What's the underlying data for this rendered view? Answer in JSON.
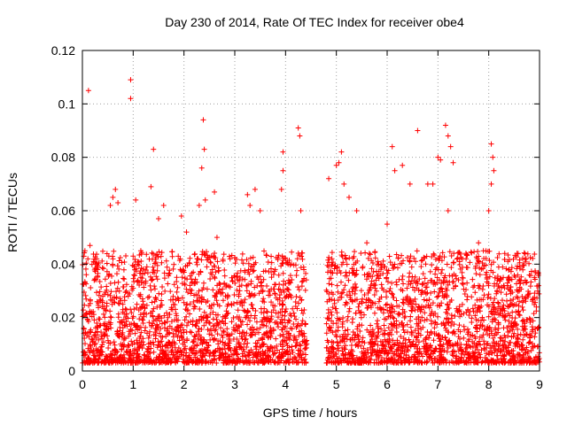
{
  "chart_data": {
    "type": "scatter",
    "title": "Day 230 of 2014, Rate Of TEC Index for receiver obe4",
    "xlabel": "GPS time / hours",
    "ylabel": "ROTI / TECUs",
    "xlim": [
      0,
      9
    ],
    "ylim": [
      0,
      0.12
    ],
    "x_ticks": [
      0,
      1,
      2,
      3,
      4,
      5,
      6,
      7,
      8,
      9
    ],
    "x_tick_labels": [
      "0",
      "1",
      "2",
      "3",
      "4",
      "5",
      "6",
      "7",
      "8",
      "9"
    ],
    "y_ticks": [
      0,
      0.02,
      0.04,
      0.06,
      0.08,
      0.1,
      0.12
    ],
    "y_tick_labels": [
      "0",
      "0.02",
      "0.04",
      "0.06",
      "0.08",
      "0.1",
      "0.12"
    ],
    "grid": true,
    "marker": "+",
    "color": "#ff0000",
    "data_gap_hours": [
      4.42,
      4.8
    ],
    "series": [
      {
        "name": "ROTI",
        "points": [
          [
            0.05,
            0.045
          ],
          [
            0.12,
            0.105
          ],
          [
            0.15,
            0.047
          ],
          [
            0.22,
            0.041
          ],
          [
            0.3,
            0.038
          ],
          [
            0.55,
            0.062
          ],
          [
            0.6,
            0.065
          ],
          [
            0.65,
            0.068
          ],
          [
            0.7,
            0.063
          ],
          [
            0.95,
            0.109
          ],
          [
            0.95,
            0.102
          ],
          [
            1.05,
            0.064
          ],
          [
            1.15,
            0.045
          ],
          [
            1.35,
            0.069
          ],
          [
            1.4,
            0.083
          ],
          [
            1.5,
            0.057
          ],
          [
            1.6,
            0.062
          ],
          [
            1.95,
            0.058
          ],
          [
            2.05,
            0.052
          ],
          [
            2.3,
            0.062
          ],
          [
            2.35,
            0.076
          ],
          [
            2.38,
            0.094
          ],
          [
            2.4,
            0.083
          ],
          [
            2.42,
            0.064
          ],
          [
            2.6,
            0.067
          ],
          [
            2.65,
            0.05
          ],
          [
            3.25,
            0.066
          ],
          [
            3.3,
            0.062
          ],
          [
            3.4,
            0.068
          ],
          [
            3.5,
            0.06
          ],
          [
            3.95,
            0.082
          ],
          [
            3.95,
            0.075
          ],
          [
            3.92,
            0.068
          ],
          [
            4.25,
            0.091
          ],
          [
            4.28,
            0.088
          ],
          [
            4.3,
            0.06
          ],
          [
            4.85,
            0.072
          ],
          [
            5.0,
            0.077
          ],
          [
            5.05,
            0.078
          ],
          [
            5.1,
            0.082
          ],
          [
            5.15,
            0.07
          ],
          [
            5.25,
            0.065
          ],
          [
            5.4,
            0.06
          ],
          [
            5.6,
            0.048
          ],
          [
            6.0,
            0.055
          ],
          [
            6.1,
            0.084
          ],
          [
            6.15,
            0.075
          ],
          [
            6.3,
            0.077
          ],
          [
            6.45,
            0.07
          ],
          [
            6.6,
            0.09
          ],
          [
            6.8,
            0.07
          ],
          [
            6.9,
            0.07
          ],
          [
            7.0,
            0.08
          ],
          [
            7.05,
            0.079
          ],
          [
            7.15,
            0.092
          ],
          [
            7.2,
            0.088
          ],
          [
            7.25,
            0.084
          ],
          [
            7.3,
            0.078
          ],
          [
            7.2,
            0.06
          ],
          [
            7.8,
            0.048
          ],
          [
            8.05,
            0.085
          ],
          [
            8.08,
            0.08
          ],
          [
            8.1,
            0.075
          ],
          [
            8.05,
            0.07
          ],
          [
            8.0,
            0.06
          ],
          [
            8.4,
            0.038
          ],
          [
            8.6,
            0.03
          ],
          [
            8.9,
            0.035
          ]
        ]
      }
    ],
    "noise_model": {
      "description": "dense background band of ROTI values between ~0.003 and ~0.045 TECU across the observed hours",
      "baseline_min": 0.003,
      "baseline_max": 0.045,
      "approx_point_count": 4000
    }
  }
}
